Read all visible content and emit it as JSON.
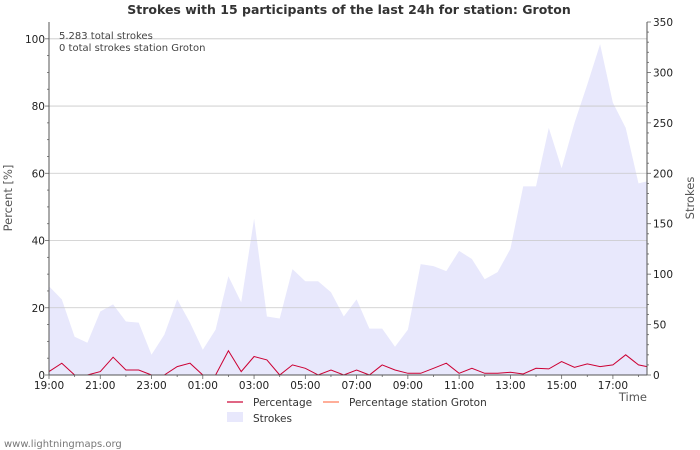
{
  "chart_data": {
    "type": "area",
    "title": "Strokes with 15 participants of the last 24h for station: Groton",
    "annotations": [
      "5.283 total strokes",
      "0 total strokes station Groton"
    ],
    "xlabel": "Time",
    "ylabel_left": "Percent   [%]",
    "ylabel_right": "Strokes",
    "ylim_left": [
      0,
      105
    ],
    "ylim_right": [
      0,
      350
    ],
    "y_ticks_left": [
      "0",
      "20",
      "40",
      "60",
      "80",
      "100"
    ],
    "y_ticks_right": [
      "0",
      "50",
      "100",
      "150",
      "200",
      "250",
      "300",
      "350"
    ],
    "x_ticks": [
      "19:00",
      "21:00",
      "23:00",
      "01:00",
      "03:00",
      "05:00",
      "07:00",
      "09:00",
      "11:00",
      "13:00",
      "15:00",
      "17:00"
    ],
    "x_hours": [
      0,
      23.33
    ],
    "grid": true,
    "series": [
      {
        "name": "Strokes",
        "axis": "right",
        "color": "#e8e8fc",
        "x": [
          0,
          0.5,
          1,
          1.5,
          2,
          2.5,
          3,
          3.5,
          4,
          4.5,
          5,
          5.5,
          6,
          6.5,
          7,
          7.5,
          8,
          8.5,
          9,
          9.5,
          10,
          10.5,
          11,
          11.5,
          12,
          12.5,
          13,
          13.5,
          14,
          14.5,
          15,
          15.5,
          16,
          16.5,
          17,
          17.5,
          18,
          18.5,
          19,
          19.5,
          20,
          20.5,
          21,
          21.5,
          22,
          22.5,
          23,
          23.33
        ],
        "values": [
          88,
          75,
          38,
          32,
          63,
          70,
          53,
          52,
          20,
          40,
          75,
          52,
          25,
          45,
          98,
          72,
          155,
          58,
          56,
          105,
          93,
          93,
          82,
          58,
          75,
          46,
          46,
          28,
          45,
          110,
          108,
          103,
          123,
          115,
          95,
          102,
          125,
          187,
          187,
          245,
          205,
          250,
          288,
          328,
          270,
          245,
          190,
          192
        ]
      },
      {
        "name": "Percentage",
        "axis": "left",
        "color": "#cc0033",
        "x": [
          0,
          0.5,
          1,
          1.5,
          2,
          2.5,
          3,
          3.5,
          4,
          4.5,
          5,
          5.5,
          6,
          6.5,
          7,
          7.5,
          8,
          8.5,
          9,
          9.5,
          10,
          10.5,
          11,
          11.5,
          12,
          12.5,
          13,
          13.5,
          14,
          14.5,
          15,
          15.5,
          16,
          16.5,
          17,
          17.5,
          18,
          18.5,
          19,
          19.5,
          20,
          20.5,
          21,
          21.5,
          22,
          22.5,
          23,
          23.33
        ],
        "values": [
          1,
          3.5,
          0,
          0,
          1,
          5.3,
          1.5,
          1.5,
          0,
          0,
          2.5,
          3.5,
          0,
          0,
          7.2,
          1,
          5.5,
          4.5,
          0,
          3,
          2,
          0,
          1.5,
          0,
          1.5,
          0,
          3,
          1.5,
          0.5,
          0.5,
          2,
          3.5,
          0.5,
          2,
          0.5,
          0.5,
          0.8,
          0.3,
          2,
          1.8,
          4,
          2.3,
          3.3,
          2.5,
          3,
          6,
          3,
          2.5
        ]
      },
      {
        "name": "Percentage station Groton",
        "axis": "left",
        "color": "#ff7755",
        "x": [],
        "values": []
      }
    ]
  },
  "footer": {
    "credit": "www.lightningmaps.org"
  }
}
